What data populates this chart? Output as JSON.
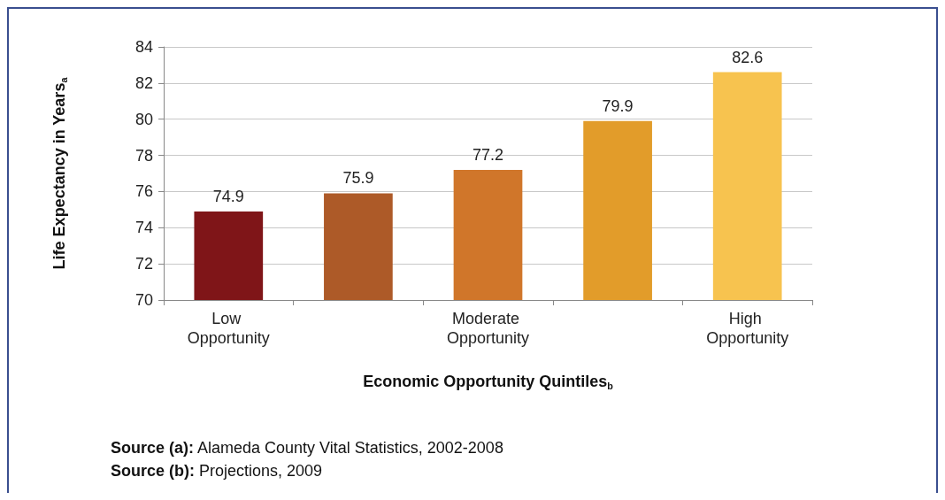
{
  "chart_data": {
    "type": "bar",
    "xlabel": "Economic Opportunity Quintiles$_{b}$",
    "ylabel": "Life Expectancy in Years$_{a}$",
    "categories": [
      "Low Opportunity",
      null,
      "Moderate Opportunity",
      null,
      "High Opportunity"
    ],
    "values": [
      74.9,
      75.9,
      77.2,
      79.9,
      82.6
    ],
    "colors": [
      "#7f1518",
      "#ad5a28",
      "#d0762a",
      "#e29c2a",
      "#f7c34f"
    ],
    "ylim": [
      70,
      84
    ],
    "yticks": [
      70,
      72,
      74,
      76,
      78,
      80,
      82,
      84
    ],
    "grid": "y",
    "data_labels": true,
    "annotations": [
      "Source (a): Alameda County Vital Statistics, 2002-2008",
      "Source (b): Projections, 2009"
    ]
  }
}
